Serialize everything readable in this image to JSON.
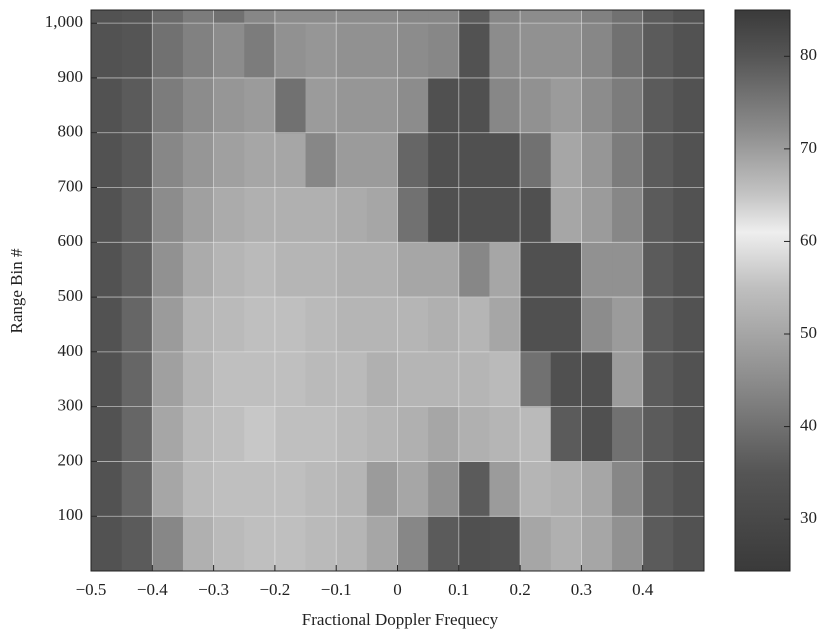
{
  "chart_data": {
    "type": "heatmap",
    "xlabel": "Fractional Doppler Frequecy",
    "ylabel": "Range Bin #",
    "x_edges": [
      -0.5,
      -0.45,
      -0.4,
      -0.35,
      -0.3,
      -0.25,
      -0.2,
      -0.15,
      -0.1,
      -0.05,
      0,
      0.05,
      0.1,
      0.15,
      0.2,
      0.25,
      0.3,
      0.35,
      0.4,
      0.45,
      0.5
    ],
    "y_edges": [
      0,
      100,
      200,
      300,
      400,
      500,
      600,
      700,
      800,
      900,
      1000,
      1024
    ],
    "z": [
      [
        34,
        36,
        44,
        52,
        54,
        55,
        55,
        54,
        53,
        50,
        44,
        36,
        33,
        34,
        50,
        52,
        50,
        46,
        36,
        34
      ],
      [
        34,
        38,
        50,
        54,
        55,
        55,
        55,
        54,
        53,
        48,
        50,
        46,
        36,
        48,
        53,
        52,
        50,
        44,
        36,
        34
      ],
      [
        34,
        38,
        50,
        54,
        55,
        56,
        55,
        55,
        54,
        53,
        52,
        50,
        52,
        53,
        54,
        36,
        33,
        40,
        36,
        34
      ],
      [
        34,
        38,
        49,
        53,
        55,
        55,
        55,
        54,
        54,
        52,
        53,
        53,
        53,
        54,
        40,
        33,
        33,
        48,
        36,
        34
      ],
      [
        34,
        38,
        48,
        53,
        54,
        55,
        55,
        54,
        53,
        53,
        53,
        52,
        53,
        50,
        33,
        33,
        45,
        48,
        36,
        34
      ],
      [
        34,
        37,
        46,
        51,
        53,
        54,
        53,
        53,
        52,
        52,
        50,
        50,
        44,
        50,
        33,
        33,
        46,
        46,
        36,
        34
      ],
      [
        34,
        37,
        45,
        49,
        51,
        52,
        52,
        52,
        51,
        50,
        40,
        33,
        33,
        33,
        33,
        50,
        48,
        44,
        36,
        34
      ],
      [
        34,
        36,
        44,
        47,
        49,
        50,
        50,
        44,
        48,
        48,
        38,
        33,
        33,
        33,
        40,
        50,
        47,
        42,
        36,
        34
      ],
      [
        34,
        36,
        42,
        45,
        47,
        48,
        40,
        48,
        47,
        47,
        45,
        33,
        33,
        44,
        46,
        48,
        45,
        42,
        36,
        34
      ],
      [
        34,
        35,
        40,
        43,
        45,
        42,
        46,
        47,
        46,
        46,
        45,
        44,
        34,
        45,
        46,
        46,
        44,
        40,
        36,
        34
      ],
      [
        34,
        35,
        39,
        42,
        40,
        44,
        45,
        45,
        45,
        45,
        44,
        44,
        36,
        44,
        45,
        45,
        43,
        40,
        36,
        34
      ]
    ],
    "xlim": [
      -0.5,
      0.5
    ],
    "ylim": [
      0,
      1024
    ],
    "xticks": [
      {
        "value": -0.5,
        "label": "−0.5"
      },
      {
        "value": -0.4,
        "label": "−0.4"
      },
      {
        "value": -0.3,
        "label": "−0.3"
      },
      {
        "value": -0.2,
        "label": "−0.2"
      },
      {
        "value": -0.1,
        "label": "−0.1"
      },
      0,
      0.1,
      0.2,
      0.3,
      0.4
    ],
    "yticks": [
      100,
      200,
      300,
      400,
      500,
      600,
      700,
      800,
      {
        "value": 900,
        "label": "900"
      },
      {
        "value": 1000,
        "label": "1,000"
      }
    ],
    "clim": [
      24.4,
      85
    ],
    "cticks": [
      30,
      40,
      50,
      60,
      70,
      80
    ],
    "colormap": [
      [
        24.4,
        "#3a3a3a"
      ],
      [
        35,
        "#555555"
      ],
      [
        45,
        "#8c8c8c"
      ],
      [
        55,
        "#bfbfbf"
      ],
      [
        61,
        "#eeeeee"
      ],
      [
        65,
        "#c4c4c4"
      ],
      [
        72,
        "#8c8c8c"
      ],
      [
        80,
        "#555555"
      ],
      [
        85,
        "#3a3a3a"
      ]
    ],
    "grid": true
  }
}
